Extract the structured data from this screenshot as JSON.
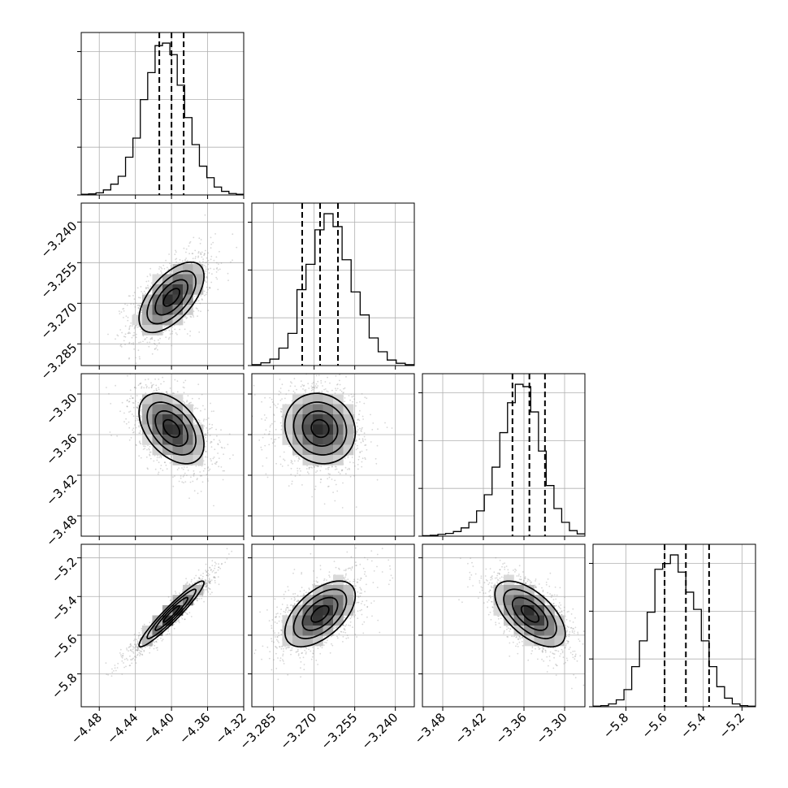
{
  "chart_data": {
    "type": "corner",
    "grid": true,
    "parameters": [
      {
        "range": [
          -4.5,
          -4.32
        ],
        "ticks": [
          -4.48,
          -4.44,
          -4.4,
          -4.36,
          -4.32
        ],
        "tick_labels": [
          "−4.48",
          "−4.44",
          "−4.40",
          "−4.36",
          "−4.32"
        ],
        "mean": -4.4,
        "sd": 0.018,
        "quantiles": [
          -4.4135,
          -4.4,
          -4.3865
        ]
      },
      {
        "range": [
          -3.293,
          -3.233
        ],
        "ticks": [
          -3.285,
          -3.27,
          -3.255,
          -3.24
        ],
        "tick_labels": [
          "−3.285",
          "−3.270",
          "−3.255",
          "−3.240"
        ],
        "mean": -3.2678,
        "sd": 0.0065,
        "quantiles": [
          -3.2744,
          -3.2678,
          -3.2612
        ]
      },
      {
        "range": [
          -3.51,
          -3.27
        ],
        "ticks": [
          -3.48,
          -3.42,
          -3.36,
          -3.3
        ],
        "tick_labels": [
          "−3.48",
          "−3.42",
          "−3.36",
          "−3.30"
        ],
        "mean": -3.351,
        "sd": 0.026,
        "quantiles": [
          -3.377,
          -3.352,
          -3.329
        ]
      },
      {
        "range": [
          -5.97,
          -5.13
        ],
        "ticks": [
          -5.8,
          -5.6,
          -5.4,
          -5.2
        ],
        "tick_labels": [
          "−5.8",
          "−5.6",
          "−5.4",
          "−5.2"
        ],
        "mean": -5.49,
        "sd": 0.085,
        "quantiles": [
          -5.6,
          -5.49,
          -5.37
        ]
      }
    ],
    "correlations": [
      [
        1.0,
        0.6,
        -0.45,
        0.95
      ],
      [
        0.6,
        1.0,
        -0.1,
        0.55
      ],
      [
        -0.45,
        -0.1,
        1.0,
        -0.6
      ],
      [
        0.95,
        0.55,
        -0.6,
        1.0
      ]
    ],
    "histogram_values": [
      [
        2,
        3,
        6,
        14,
        30,
        52,
        105,
        158,
        265,
        340,
        415,
        422,
        390,
        305,
        215,
        140,
        80,
        48,
        22,
        10,
        4,
        2
      ],
      [
        2,
        6,
        14,
        38,
        70,
        165,
        220,
        295,
        330,
        302,
        230,
        160,
        110,
        60,
        30,
        12,
        5,
        2
      ],
      [
        1,
        2,
        4,
        6,
        10,
        18,
        30,
        55,
        90,
        150,
        225,
        290,
        330,
        325,
        270,
        185,
        110,
        60,
        30,
        12,
        5
      ],
      [
        1,
        2,
        5,
        12,
        30,
        70,
        115,
        165,
        240,
        250,
        265,
        235,
        200,
        170,
        115,
        70,
        35,
        15,
        5,
        2,
        1
      ]
    ]
  }
}
